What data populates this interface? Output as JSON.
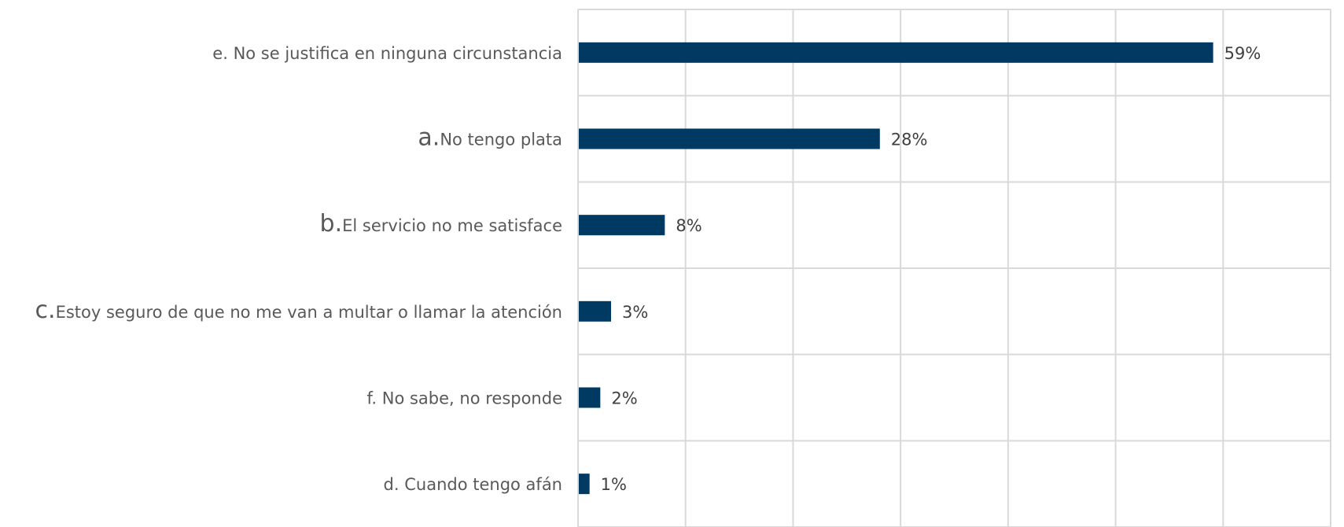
{
  "chart_data": {
    "type": "bar",
    "orientation": "horizontal",
    "categories": [
      {
        "prefix": "e.",
        "text": "No se justifica en ninguna circunstancia",
        "large_prefix": false
      },
      {
        "prefix": "a.",
        "text": "No tengo plata",
        "large_prefix": true
      },
      {
        "prefix": "b.",
        "text": "El servicio no me satisface",
        "large_prefix": true
      },
      {
        "prefix": "c.",
        "text": "Estoy seguro de que no me van a multar o llamar la atención",
        "large_prefix": true
      },
      {
        "prefix": "f.",
        "text": "No sabe, no responde",
        "large_prefix": false
      },
      {
        "prefix": "d.",
        "text": "Cuando tengo afán",
        "large_prefix": false
      }
    ],
    "values": [
      59,
      28,
      8,
      3,
      2,
      1
    ],
    "value_labels": [
      "59%",
      "28%",
      "8%",
      "3%",
      "2%",
      "1%"
    ],
    "xlim": [
      0,
      70
    ],
    "x_grid_step": 10,
    "grid": true,
    "bar_color": "#003a63",
    "title": "",
    "xlabel": "",
    "ylabel": ""
  }
}
